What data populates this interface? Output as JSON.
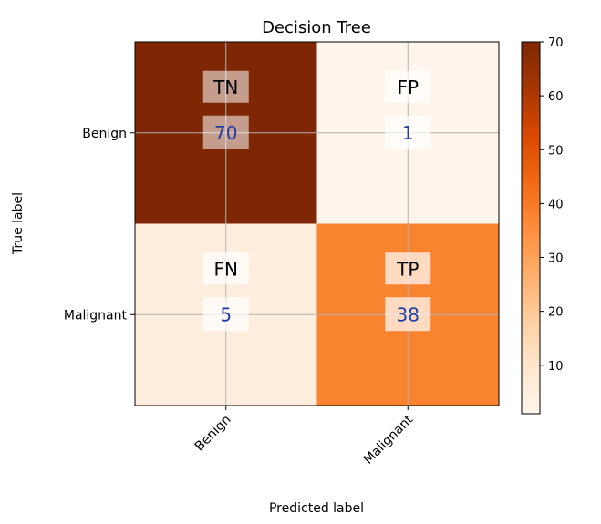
{
  "chart_data": {
    "type": "heatmap",
    "title": "Decision Tree",
    "xlabel": "Predicted label",
    "ylabel": "True label",
    "x_categories": [
      "Benign",
      "Malignant"
    ],
    "y_categories": [
      "Benign",
      "Malignant"
    ],
    "cells": [
      {
        "row": 0,
        "col": 0,
        "label": "TN",
        "value": 70
      },
      {
        "row": 0,
        "col": 1,
        "label": "FP",
        "value": 1
      },
      {
        "row": 1,
        "col": 0,
        "label": "FN",
        "value": 5
      },
      {
        "row": 1,
        "col": 1,
        "label": "TP",
        "value": 38
      }
    ],
    "colorbar": {
      "range": [
        1,
        70
      ],
      "ticks": [
        10,
        20,
        30,
        40,
        50,
        60,
        70
      ],
      "colormap": "Oranges"
    },
    "grid": true
  }
}
